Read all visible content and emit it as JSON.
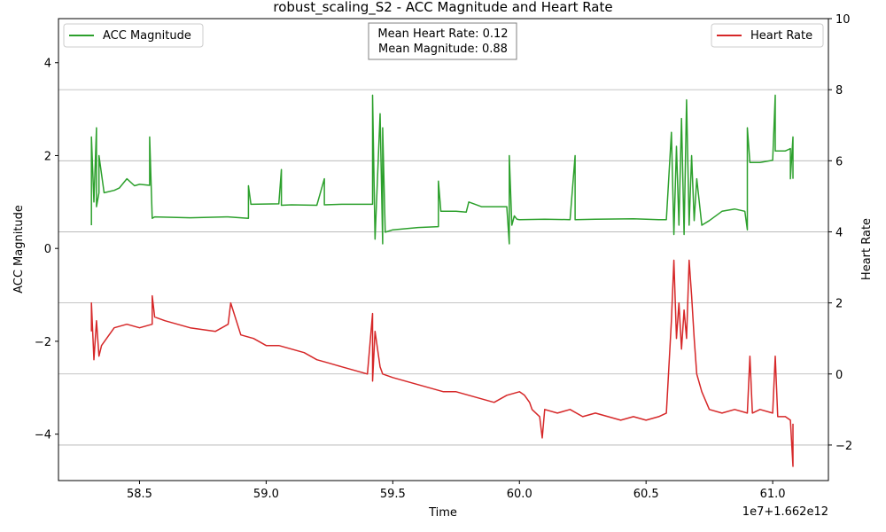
{
  "chart_data": {
    "type": "line",
    "title": "robust_scaling_S2 - ACC Magnitude and Heart Rate",
    "xlabel": "Time",
    "x_offset_label": "1e7+1.662e12",
    "ylabel_left": "ACC Magnitude",
    "ylabel_right": "Heart Rate",
    "xlim": [
      58.18,
      61.22
    ],
    "ylim_left": [
      -5.0,
      4.95
    ],
    "ylim_right": [
      -3.0,
      10.0
    ],
    "x_ticks": [
      58.5,
      59.0,
      59.5,
      60.0,
      60.5,
      61.0
    ],
    "x_tick_labels": [
      "58.5",
      "59.0",
      "59.5",
      "60.0",
      "60.5",
      "61.0"
    ],
    "y_left_ticks": [
      4,
      2,
      0,
      -2,
      -4
    ],
    "y_left_tick_labels": [
      "4",
      "2",
      "0",
      "−2",
      "−4"
    ],
    "y_right_ticks": [
      10,
      8,
      6,
      4,
      2,
      0,
      -2
    ],
    "y_right_tick_labels": [
      "10",
      "8",
      "6",
      "4",
      "2",
      "0",
      "−2"
    ],
    "grid": "horizontal (right axis)",
    "annotation": [
      "Mean Heart Rate: 0.12",
      "Mean Magnitude: 0.88"
    ],
    "series": [
      {
        "name": "ACC Magnitude",
        "axis": "left",
        "color": "#2ca02c",
        "legend_position": "top-left",
        "x": [
          58.31,
          58.31,
          58.32,
          58.33,
          58.33,
          58.34,
          58.34,
          58.36,
          58.4,
          58.42,
          58.45,
          58.48,
          58.5,
          58.54,
          58.54,
          58.55,
          58.56,
          58.7,
          58.85,
          58.93,
          58.93,
          58.94,
          59.05,
          59.06,
          59.06,
          59.1,
          59.2,
          59.23,
          59.23,
          59.3,
          59.42,
          59.42,
          59.43,
          59.45,
          59.46,
          59.46,
          59.47,
          59.5,
          59.6,
          59.68,
          59.68,
          59.69,
          59.75,
          59.79,
          59.8,
          59.85,
          59.95,
          59.96,
          59.96,
          59.97,
          59.98,
          59.99,
          60.0,
          60.1,
          60.2,
          60.22,
          60.22,
          60.3,
          60.45,
          60.55,
          60.58,
          60.6,
          60.61,
          60.62,
          60.63,
          60.64,
          60.65,
          60.66,
          60.67,
          60.68,
          60.69,
          60.7,
          60.72,
          60.75,
          60.8,
          60.85,
          60.89,
          60.9,
          60.9,
          60.91,
          60.95,
          61.0,
          61.01,
          61.01,
          61.02,
          61.05,
          61.07,
          61.07,
          61.08,
          61.08
        ],
        "y": [
          0.5,
          2.4,
          1.0,
          2.6,
          0.9,
          1.2,
          2.0,
          1.2,
          1.25,
          1.3,
          1.5,
          1.35,
          1.38,
          1.36,
          2.4,
          0.65,
          0.68,
          0.66,
          0.68,
          0.65,
          1.35,
          0.95,
          0.96,
          1.7,
          0.93,
          0.94,
          0.93,
          1.5,
          0.94,
          0.95,
          0.95,
          3.3,
          0.2,
          2.9,
          0.1,
          2.6,
          0.35,
          0.4,
          0.45,
          0.47,
          1.45,
          0.8,
          0.8,
          0.78,
          1.0,
          0.9,
          0.9,
          0.1,
          2.0,
          0.5,
          0.7,
          0.63,
          0.62,
          0.63,
          0.62,
          2.0,
          0.62,
          0.63,
          0.64,
          0.62,
          0.62,
          2.5,
          0.3,
          2.2,
          0.5,
          2.8,
          0.3,
          3.2,
          0.5,
          2.0,
          0.6,
          1.5,
          0.5,
          0.6,
          0.8,
          0.85,
          0.8,
          0.4,
          2.6,
          1.85,
          1.85,
          1.9,
          3.3,
          2.1,
          2.1,
          2.1,
          2.15,
          1.5,
          2.4,
          1.5
        ]
      },
      {
        "name": "Heart Rate",
        "axis": "right",
        "color": "#d62728",
        "legend_position": "top-right",
        "x": [
          58.31,
          58.31,
          58.32,
          58.33,
          58.34,
          58.35,
          58.4,
          58.45,
          58.5,
          58.55,
          58.55,
          58.56,
          58.6,
          58.7,
          58.8,
          58.85,
          58.86,
          58.9,
          58.95,
          59.0,
          59.05,
          59.1,
          59.15,
          59.2,
          59.25,
          59.3,
          59.35,
          59.4,
          59.42,
          59.42,
          59.43,
          59.45,
          59.46,
          59.5,
          59.55,
          59.6,
          59.65,
          59.7,
          59.75,
          59.8,
          59.85,
          59.9,
          59.95,
          60.0,
          60.02,
          60.04,
          60.05,
          60.08,
          60.09,
          60.1,
          60.15,
          60.2,
          60.25,
          60.3,
          60.35,
          60.4,
          60.45,
          60.5,
          60.55,
          60.58,
          60.6,
          60.61,
          60.62,
          60.63,
          60.64,
          60.65,
          60.66,
          60.67,
          60.68,
          60.69,
          60.7,
          60.72,
          60.75,
          60.8,
          60.85,
          60.9,
          60.91,
          60.92,
          60.95,
          61.0,
          61.01,
          61.02,
          61.05,
          61.07,
          61.08,
          61.08
        ],
        "y": [
          1.2,
          2.0,
          0.4,
          1.5,
          0.5,
          0.8,
          1.3,
          1.4,
          1.3,
          1.4,
          2.2,
          1.6,
          1.5,
          1.3,
          1.2,
          1.4,
          2.0,
          1.1,
          1.0,
          0.8,
          0.8,
          0.7,
          0.6,
          0.4,
          0.3,
          0.2,
          0.1,
          0.0,
          1.7,
          -0.2,
          1.2,
          0.2,
          0.0,
          -0.1,
          -0.2,
          -0.3,
          -0.4,
          -0.5,
          -0.5,
          -0.6,
          -0.7,
          -0.8,
          -0.6,
          -0.5,
          -0.6,
          -0.8,
          -1.0,
          -1.2,
          -1.8,
          -1.0,
          -1.1,
          -1.0,
          -1.2,
          -1.1,
          -1.2,
          -1.3,
          -1.2,
          -1.3,
          -1.2,
          -1.1,
          1.5,
          3.2,
          1.0,
          2.0,
          0.7,
          1.8,
          1.0,
          3.2,
          2.2,
          1.0,
          0.0,
          -0.5,
          -1.0,
          -1.1,
          -1.0,
          -1.1,
          0.5,
          -1.1,
          -1.0,
          -1.1,
          0.5,
          -1.2,
          -1.2,
          -1.3,
          -2.6,
          -1.4
        ]
      }
    ]
  }
}
